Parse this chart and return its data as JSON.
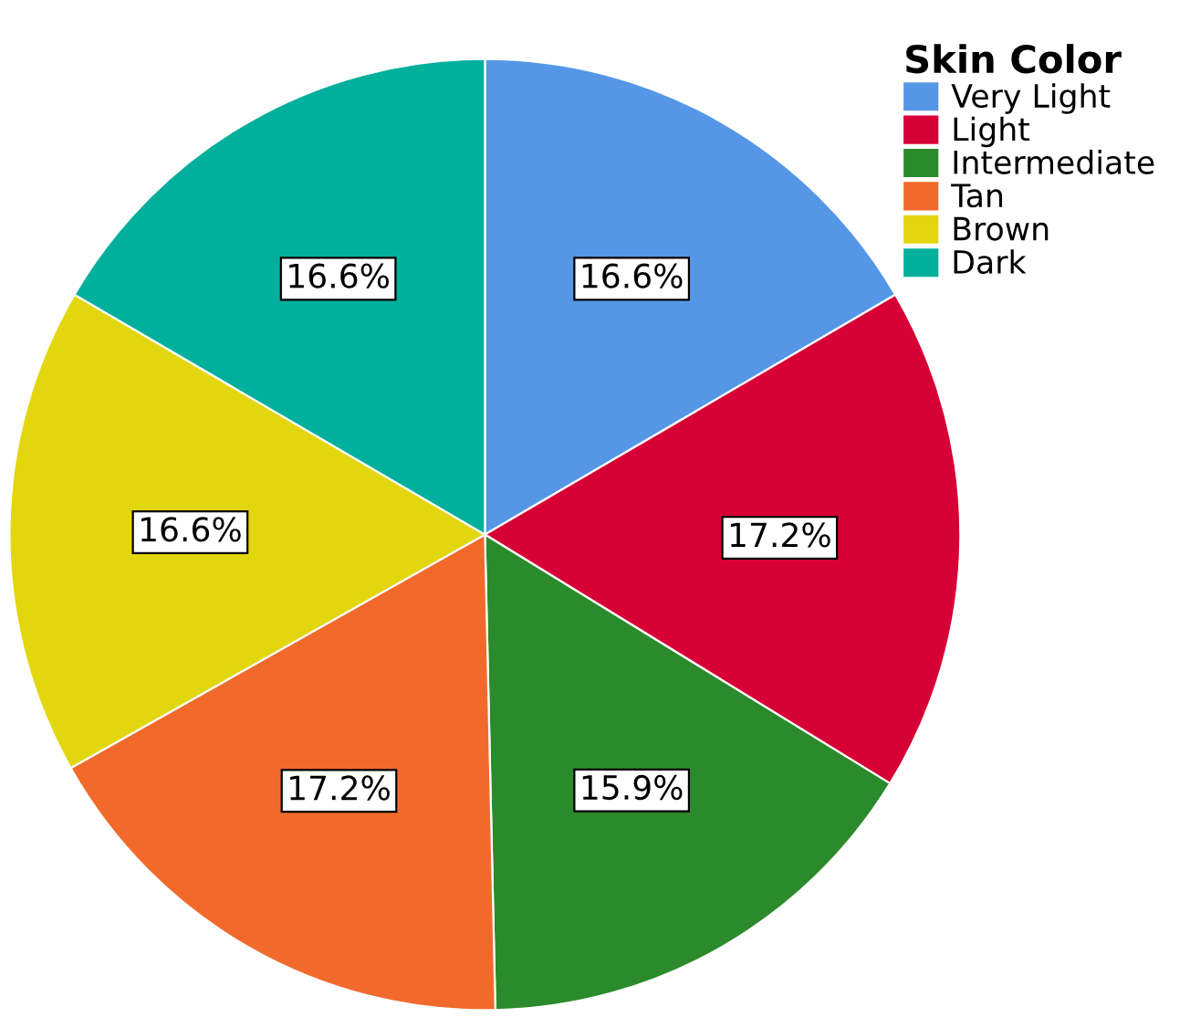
{
  "chart_data": {
    "type": "pie",
    "legend_title": "Skin Color",
    "categories": [
      "Very Light",
      "Light",
      "Intermediate",
      "Tan",
      "Brown",
      "Dark"
    ],
    "values": [
      16.6,
      17.2,
      15.9,
      17.2,
      16.6,
      16.6
    ],
    "colors": [
      "#5597e6",
      "#d70036",
      "#2b8a2b",
      "#f26a2b",
      "#e2d60f",
      "#00b09c"
    ],
    "value_labels": [
      "16.6%",
      "17.2%",
      "15.9%",
      "17.2%",
      "16.6%",
      "16.6%"
    ],
    "legend": "top right"
  }
}
